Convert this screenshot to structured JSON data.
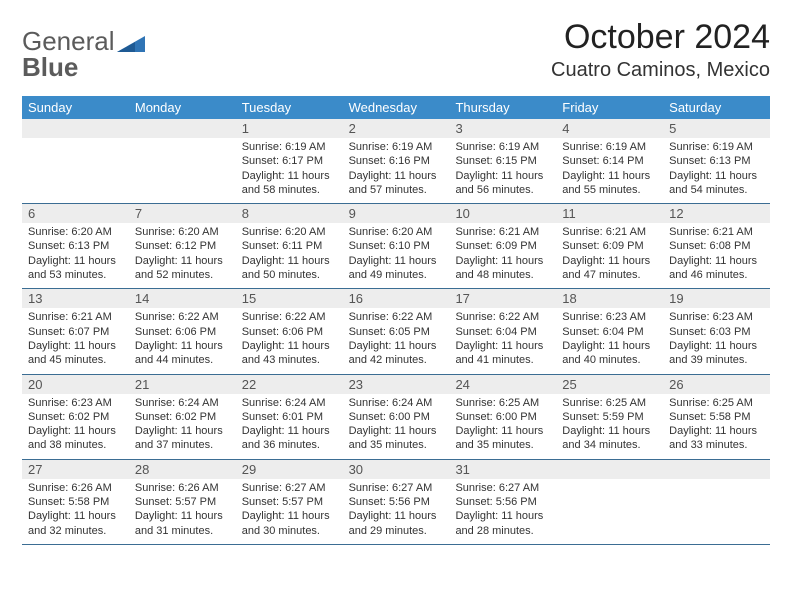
{
  "brand": {
    "part1": "General",
    "part2": "Blue"
  },
  "title": "October 2024",
  "location": "Cuatro Caminos, Mexico",
  "colors": {
    "header_bg": "#3b8bc9",
    "header_text": "#ffffff",
    "daynum_bg": "#ededed",
    "cell_border": "#3b6d93",
    "logo_gray": "#5b5b5b",
    "logo_blue": "#2f74b5"
  },
  "weekdays": [
    "Sunday",
    "Monday",
    "Tuesday",
    "Wednesday",
    "Thursday",
    "Friday",
    "Saturday"
  ],
  "weeks": [
    [
      {
        "day": null
      },
      {
        "day": null
      },
      {
        "day": "1",
        "sunrise": "6:19 AM",
        "sunset": "6:17 PM",
        "daylight": "11 hours and 58 minutes."
      },
      {
        "day": "2",
        "sunrise": "6:19 AM",
        "sunset": "6:16 PM",
        "daylight": "11 hours and 57 minutes."
      },
      {
        "day": "3",
        "sunrise": "6:19 AM",
        "sunset": "6:15 PM",
        "daylight": "11 hours and 56 minutes."
      },
      {
        "day": "4",
        "sunrise": "6:19 AM",
        "sunset": "6:14 PM",
        "daylight": "11 hours and 55 minutes."
      },
      {
        "day": "5",
        "sunrise": "6:19 AM",
        "sunset": "6:13 PM",
        "daylight": "11 hours and 54 minutes."
      }
    ],
    [
      {
        "day": "6",
        "sunrise": "6:20 AM",
        "sunset": "6:13 PM",
        "daylight": "11 hours and 53 minutes."
      },
      {
        "day": "7",
        "sunrise": "6:20 AM",
        "sunset": "6:12 PM",
        "daylight": "11 hours and 52 minutes."
      },
      {
        "day": "8",
        "sunrise": "6:20 AM",
        "sunset": "6:11 PM",
        "daylight": "11 hours and 50 minutes."
      },
      {
        "day": "9",
        "sunrise": "6:20 AM",
        "sunset": "6:10 PM",
        "daylight": "11 hours and 49 minutes."
      },
      {
        "day": "10",
        "sunrise": "6:21 AM",
        "sunset": "6:09 PM",
        "daylight": "11 hours and 48 minutes."
      },
      {
        "day": "11",
        "sunrise": "6:21 AM",
        "sunset": "6:09 PM",
        "daylight": "11 hours and 47 minutes."
      },
      {
        "day": "12",
        "sunrise": "6:21 AM",
        "sunset": "6:08 PM",
        "daylight": "11 hours and 46 minutes."
      }
    ],
    [
      {
        "day": "13",
        "sunrise": "6:21 AM",
        "sunset": "6:07 PM",
        "daylight": "11 hours and 45 minutes."
      },
      {
        "day": "14",
        "sunrise": "6:22 AM",
        "sunset": "6:06 PM",
        "daylight": "11 hours and 44 minutes."
      },
      {
        "day": "15",
        "sunrise": "6:22 AM",
        "sunset": "6:06 PM",
        "daylight": "11 hours and 43 minutes."
      },
      {
        "day": "16",
        "sunrise": "6:22 AM",
        "sunset": "6:05 PM",
        "daylight": "11 hours and 42 minutes."
      },
      {
        "day": "17",
        "sunrise": "6:22 AM",
        "sunset": "6:04 PM",
        "daylight": "11 hours and 41 minutes."
      },
      {
        "day": "18",
        "sunrise": "6:23 AM",
        "sunset": "6:04 PM",
        "daylight": "11 hours and 40 minutes."
      },
      {
        "day": "19",
        "sunrise": "6:23 AM",
        "sunset": "6:03 PM",
        "daylight": "11 hours and 39 minutes."
      }
    ],
    [
      {
        "day": "20",
        "sunrise": "6:23 AM",
        "sunset": "6:02 PM",
        "daylight": "11 hours and 38 minutes."
      },
      {
        "day": "21",
        "sunrise": "6:24 AM",
        "sunset": "6:02 PM",
        "daylight": "11 hours and 37 minutes."
      },
      {
        "day": "22",
        "sunrise": "6:24 AM",
        "sunset": "6:01 PM",
        "daylight": "11 hours and 36 minutes."
      },
      {
        "day": "23",
        "sunrise": "6:24 AM",
        "sunset": "6:00 PM",
        "daylight": "11 hours and 35 minutes."
      },
      {
        "day": "24",
        "sunrise": "6:25 AM",
        "sunset": "6:00 PM",
        "daylight": "11 hours and 35 minutes."
      },
      {
        "day": "25",
        "sunrise": "6:25 AM",
        "sunset": "5:59 PM",
        "daylight": "11 hours and 34 minutes."
      },
      {
        "day": "26",
        "sunrise": "6:25 AM",
        "sunset": "5:58 PM",
        "daylight": "11 hours and 33 minutes."
      }
    ],
    [
      {
        "day": "27",
        "sunrise": "6:26 AM",
        "sunset": "5:58 PM",
        "daylight": "11 hours and 32 minutes."
      },
      {
        "day": "28",
        "sunrise": "6:26 AM",
        "sunset": "5:57 PM",
        "daylight": "11 hours and 31 minutes."
      },
      {
        "day": "29",
        "sunrise": "6:27 AM",
        "sunset": "5:57 PM",
        "daylight": "11 hours and 30 minutes."
      },
      {
        "day": "30",
        "sunrise": "6:27 AM",
        "sunset": "5:56 PM",
        "daylight": "11 hours and 29 minutes."
      },
      {
        "day": "31",
        "sunrise": "6:27 AM",
        "sunset": "5:56 PM",
        "daylight": "11 hours and 28 minutes."
      },
      {
        "day": null
      },
      {
        "day": null
      }
    ]
  ],
  "labels": {
    "sunrise": "Sunrise: ",
    "sunset": "Sunset: ",
    "daylight": "Daylight: "
  },
  "typography": {
    "title_fontsize": 34,
    "location_fontsize": 20,
    "weekday_fontsize": 13,
    "daynum_fontsize": 13,
    "body_fontsize": 11
  }
}
